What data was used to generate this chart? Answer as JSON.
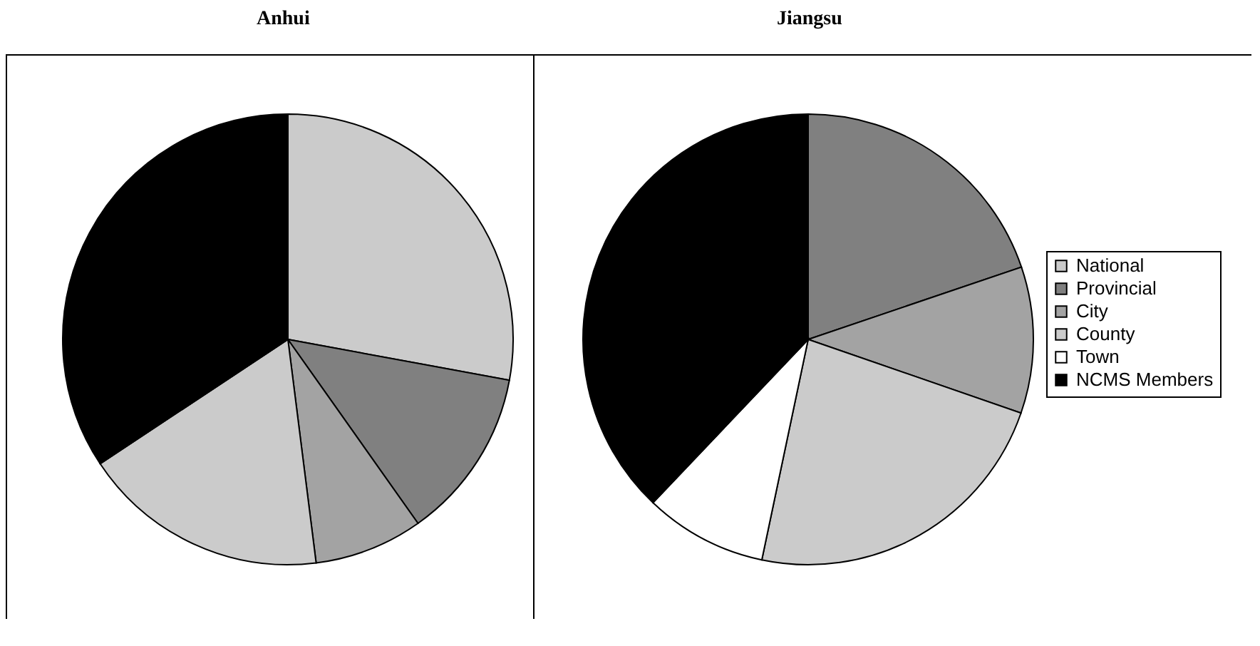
{
  "chart_data": [
    {
      "type": "pie",
      "title": "Anhui",
      "categories": [
        null,
        null,
        null,
        null,
        null,
        null
      ],
      "values": [
        27.9,
        12.3,
        7.8,
        17.7,
        0,
        34.3
      ],
      "colors": [
        "#cbcbcb",
        "#808080",
        "#a3a3a3",
        "#cbcbcb",
        "#ffffff",
        "#000000"
      ],
      "legend": false
    },
    {
      "type": "pie",
      "title": "Jiangsu",
      "categories": [
        "National",
        "Provincial",
        "City",
        "County",
        "Town",
        "NCMS Members"
      ],
      "values": [
        0,
        19.8,
        10.5,
        23.0,
        8.8,
        37.9
      ],
      "colors": [
        "#cbcbcb",
        "#808080",
        "#a3a3a3",
        "#cbcbcb",
        "#ffffff",
        "#000000"
      ],
      "legend": "right"
    }
  ]
}
